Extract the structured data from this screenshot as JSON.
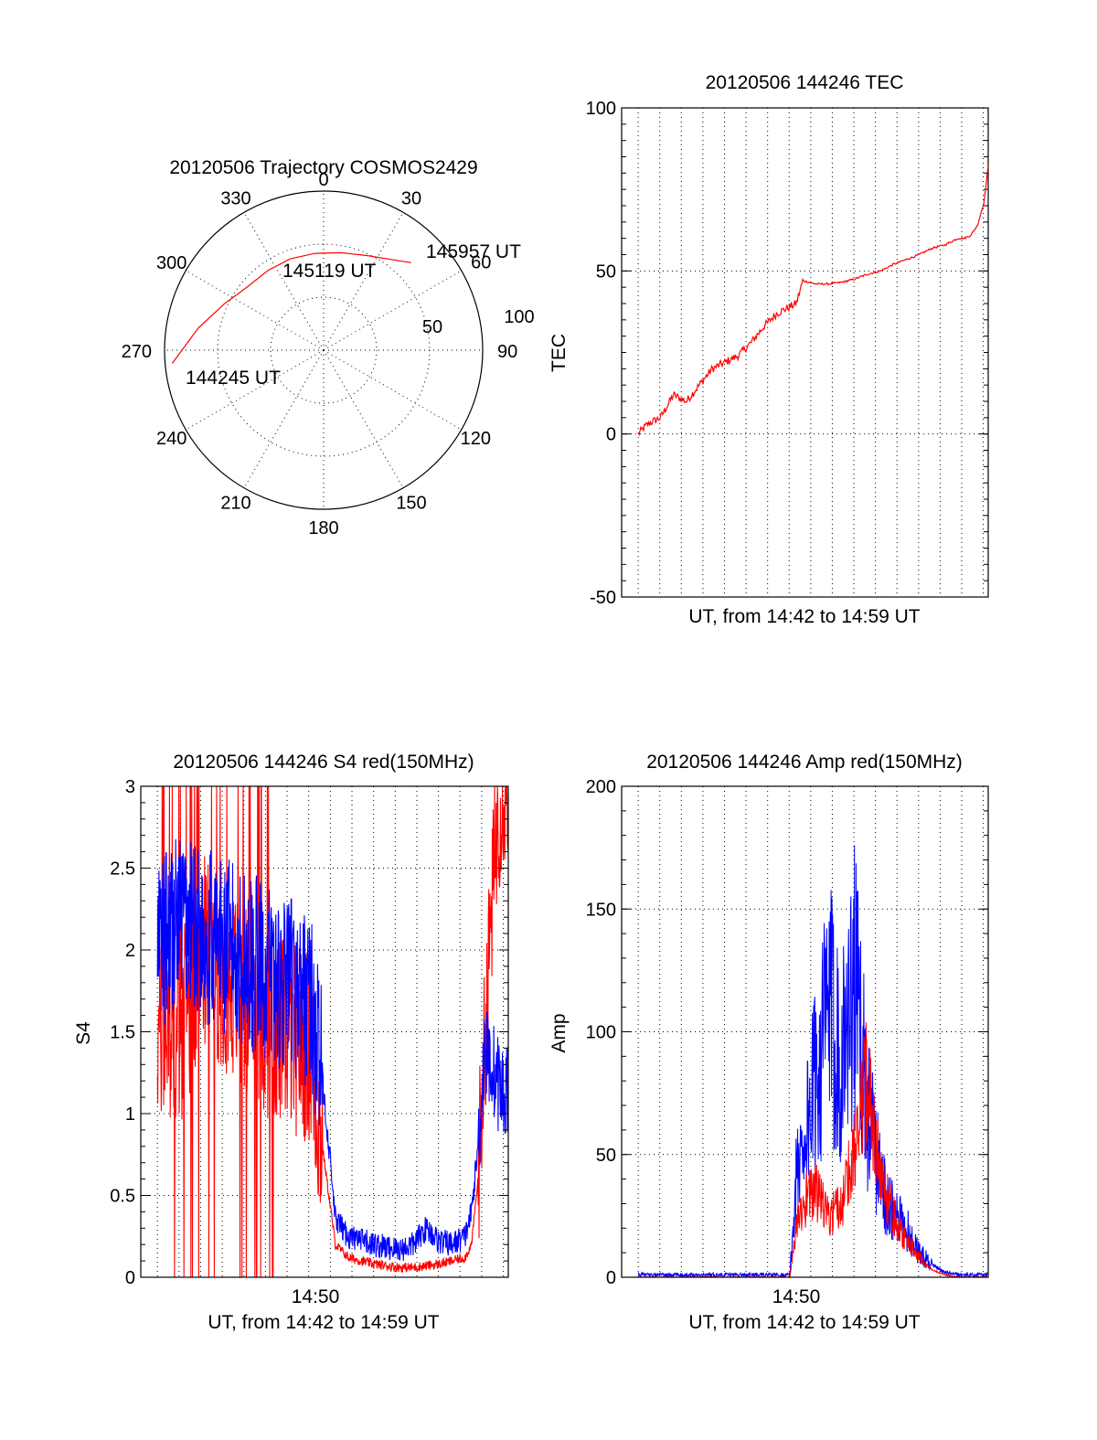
{
  "polar": {
    "title": "20120506 Trajectory COSMOS2429",
    "azimuth_labels": [
      "0",
      "30",
      "60",
      "90",
      "120",
      "150",
      "180",
      "210",
      "240",
      "270",
      "300",
      "330"
    ],
    "radial_labels": [
      "50",
      "100"
    ],
    "rlim": [
      0,
      90
    ],
    "labels": {
      "start": "144245 UT",
      "mid": "145119 UT",
      "end": "145957 UT"
    },
    "track_color": "#ff0000"
  },
  "tec": {
    "title": "20120506 144246 TEC",
    "ylabel": "TEC",
    "xlabel": "UT, from 14:42 to 14:59 UT",
    "yticks": [
      "-50",
      "0",
      "50",
      "100"
    ]
  },
  "s4": {
    "title": "20120506 144246 S4 red(150MHz)",
    "ylabel": "S4",
    "xlabel": "UT, from 14:42 to 14:59 UT",
    "xtick": "14:50",
    "yticks": [
      "0",
      "0.5",
      "1",
      "1.5",
      "2",
      "2.5",
      "3"
    ]
  },
  "amp": {
    "title": "20120506 144246 Amp red(150MHz)",
    "ylabel": "Amp",
    "xlabel": "UT, from 14:42 to 14:59 UT",
    "xtick": "14:50",
    "yticks": [
      "0",
      "50",
      "100",
      "150",
      "200"
    ]
  },
  "chart_data": [
    {
      "type": "scatter",
      "title": "20120506 Trajectory COSMOS2429",
      "coordinate_system": "polar",
      "theta_unit": "deg (azimuth, 0 = up, clockwise)",
      "r_unit": "deg (zenith angle)",
      "rlim": [
        0,
        90
      ],
      "series": [
        {
          "color": "#ff0000",
          "azimuth": [
            265,
            280,
            295,
            310,
            325,
            340,
            355,
            10,
            25,
            35,
            45
          ],
          "zenith": [
            86,
            72,
            62,
            56,
            55,
            55,
            55,
            56,
            59,
            63,
            70
          ]
        }
      ],
      "annotations": [
        "144245 UT",
        "145119 UT",
        "145957 UT"
      ]
    },
    {
      "type": "line",
      "title": "20120506 144246 TEC",
      "xlabel": "UT, from 14:42 to 14:59 UT",
      "ylabel": "TEC",
      "xlim": [
        14.7,
        14.9833
      ],
      "ylim": [
        -50,
        100
      ],
      "series": [
        {
          "color": "#ff0000",
          "x": [
            14.7128,
            14.72,
            14.73,
            14.74,
            14.75,
            14.76,
            14.77,
            14.78,
            14.79,
            14.8,
            14.81,
            14.82,
            14.83,
            14.835,
            14.84,
            14.85,
            14.86,
            14.87,
            14.88,
            14.89,
            14.9,
            14.91,
            14.92,
            14.93,
            14.94,
            14.95,
            14.96,
            14.965,
            14.97,
            14.975,
            14.98,
            14.9833
          ],
          "y": [
            0,
            3,
            5,
            12,
            10,
            15,
            20,
            22,
            24,
            28,
            33,
            37,
            39,
            40,
            47,
            46,
            46,
            46.5,
            47.5,
            49,
            50,
            52,
            53.5,
            55,
            57,
            58,
            60,
            60,
            61,
            64,
            71,
            82
          ]
        }
      ]
    },
    {
      "type": "line",
      "title": "20120506 144246 S4 red(150MHz)",
      "xlabel": "UT, from 14:42 to 14:59 UT",
      "ylabel": "S4",
      "ylim": [
        0,
        3
      ],
      "xlim": [
        14.7,
        14.9833
      ],
      "series": [
        {
          "color": "#ff0000",
          "x": [
            14.7128,
            14.73,
            14.75,
            14.77,
            14.79,
            14.81,
            14.83,
            14.835,
            14.84,
            14.845,
            14.85,
            14.86,
            14.87,
            14.88,
            14.89,
            14.9,
            14.91,
            14.92,
            14.93,
            14.94,
            14.95,
            14.955,
            14.96,
            14.965,
            14.97,
            14.975,
            14.98,
            14.9833
          ],
          "y": [
            1.5,
            1.5,
            2.0,
            1.8,
            1.6,
            1.5,
            1.4,
            1.1,
            0.8,
            0.5,
            0.2,
            0.12,
            0.1,
            0.08,
            0.07,
            0.06,
            0.06,
            0.07,
            0.08,
            0.1,
            0.12,
            0.2,
            0.6,
            1.4,
            2.2,
            2.8,
            3.0,
            3.0
          ]
        },
        {
          "color": "#0000ff",
          "x": [
            14.7128,
            14.73,
            14.75,
            14.77,
            14.79,
            14.81,
            14.83,
            14.835,
            14.84,
            14.845,
            14.85,
            14.86,
            14.87,
            14.88,
            14.89,
            14.9,
            14.91,
            14.92,
            14.93,
            14.94,
            14.95,
            14.955,
            14.96,
            14.965,
            14.97,
            14.975,
            14.98,
            14.9833
          ],
          "y": [
            2.0,
            2.2,
            2.1,
            2.0,
            1.9,
            1.8,
            1.7,
            1.5,
            1.2,
            0.8,
            0.35,
            0.25,
            0.22,
            0.2,
            0.18,
            0.17,
            0.2,
            0.3,
            0.22,
            0.2,
            0.25,
            0.4,
            0.8,
            1.4,
            1.3,
            1.2,
            1.1,
            1.2
          ]
        }
      ]
    },
    {
      "type": "line",
      "title": "20120506 144246 Amp red(150MHz)",
      "xlabel": "UT, from 14:42 to 14:59 UT",
      "ylabel": "Amp",
      "ylim": [
        0,
        200
      ],
      "xlim": [
        14.7,
        14.9833
      ],
      "series": [
        {
          "color": "#ff0000",
          "x": [
            14.7128,
            14.82,
            14.83,
            14.835,
            14.84,
            14.85,
            14.86,
            14.87,
            14.88,
            14.89,
            14.9,
            14.91,
            14.92,
            14.93,
            14.94,
            14.95,
            14.96,
            14.97,
            14.9833
          ],
          "y": [
            0,
            0,
            0,
            20,
            30,
            35,
            25,
            30,
            55,
            80,
            40,
            25,
            15,
            8,
            3,
            1,
            0,
            0,
            0
          ]
        },
        {
          "color": "#0000ff",
          "x": [
            14.7128,
            14.82,
            14.83,
            14.835,
            14.84,
            14.85,
            14.86,
            14.87,
            14.88,
            14.89,
            14.9,
            14.91,
            14.92,
            14.93,
            14.94,
            14.95,
            14.96,
            14.97,
            14.9833
          ],
          "y": [
            1,
            1,
            1,
            40,
            55,
            80,
            110,
            90,
            120,
            70,
            40,
            25,
            20,
            10,
            5,
            2,
            1,
            1,
            1
          ]
        }
      ]
    }
  ]
}
